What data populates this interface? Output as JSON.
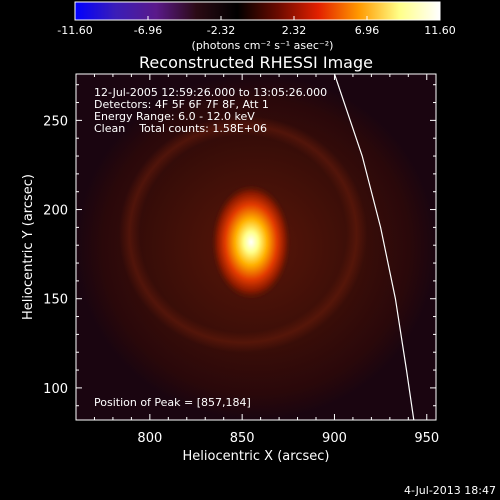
{
  "colorbar": {
    "tick_labels": [
      "-11.60",
      "-6.96",
      "-2.32",
      "2.32",
      "6.96",
      "11.60"
    ],
    "range": [
      -11.6,
      11.6
    ],
    "units_label": "(photons cm⁻² s⁻¹ asec⁻²)",
    "colormap": "red-temperature with blue negative",
    "stops": [
      "#0000ff",
      "#3a1db8",
      "#5a1a8a",
      "#2b0a14",
      "#000000",
      "#6a0a00",
      "#e22000",
      "#ff9900",
      "#ffff88",
      "#ffffff"
    ]
  },
  "chart_data": {
    "type": "heatmap",
    "title": "Reconstructed RHESSI Image",
    "xlabel": "Heliocentric X (arcsec)",
    "ylabel": "Heliocentric Y (arcsec)",
    "xlim": [
      760,
      955
    ],
    "ylim": [
      82,
      276
    ],
    "x_ticks": [
      800,
      850,
      900,
      950
    ],
    "y_ticks": [
      100,
      150,
      200,
      250
    ],
    "x_tick_labels": [
      "800",
      "850",
      "900",
      "950"
    ],
    "y_tick_labels": [
      "100",
      "150",
      "200",
      "250"
    ],
    "source_peak": [
      857,
      184
    ],
    "limb_curve": [
      [
        900,
        276
      ],
      [
        915,
        230
      ],
      [
        925,
        190
      ],
      [
        933,
        150
      ],
      [
        939,
        110
      ],
      [
        943,
        82
      ]
    ],
    "annotations": {
      "time_range": "12-Jul-2005 12:59:26.000 to 13:05:26.000",
      "detectors": "Detectors: 4F 5F 6F 7F 8F, Att 1",
      "energy_range": "Energy Range: 6.0 - 12.0 keV",
      "method_counts": "Clean    Total counts: 1.58E+06",
      "peak_position": "Position of Peak = [857,184]"
    }
  },
  "footer": {
    "date_stamp": "4-Jul-2013 18:47"
  }
}
